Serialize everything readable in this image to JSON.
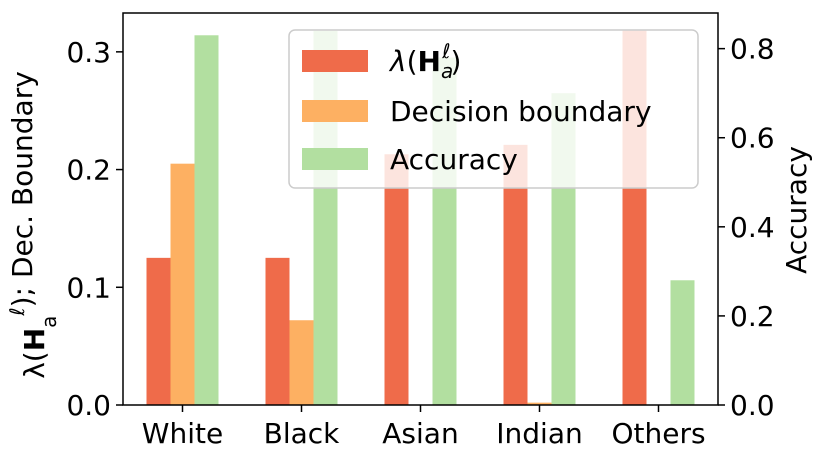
{
  "chart_data": {
    "type": "bar",
    "categories": [
      "White",
      "Black",
      "Asian",
      "Indian",
      "Others"
    ],
    "series": [
      {
        "name": "λ(H_a^ℓ)",
        "axis": "left",
        "color": "#ef6b4a",
        "values": [
          0.125,
          0.125,
          0.213,
          0.221,
          0.318
        ]
      },
      {
        "name": "Decision boundary",
        "axis": "left",
        "color": "#fdb062",
        "values": [
          0.205,
          0.072,
          0.0,
          0.002,
          0.0
        ]
      },
      {
        "name": "Accuracy",
        "axis": "right",
        "color": "#b2dfa0",
        "values": [
          0.83,
          0.84,
          0.78,
          0.7,
          0.28
        ]
      }
    ],
    "ylabel_left": "λ(H_a^ℓ); Dec. Boundary",
    "ylabel_right": "Accuracy",
    "ylim_left": [
      0,
      0.333
    ],
    "ylim_right": [
      0,
      0.88
    ],
    "yticks_left": [
      "0.0",
      "0.1",
      "0.2",
      "0.3"
    ],
    "yticks_right": [
      "0.0",
      "0.2",
      "0.4",
      "0.6",
      "0.8"
    ],
    "legend_position": "upper-right",
    "grid": false
  }
}
